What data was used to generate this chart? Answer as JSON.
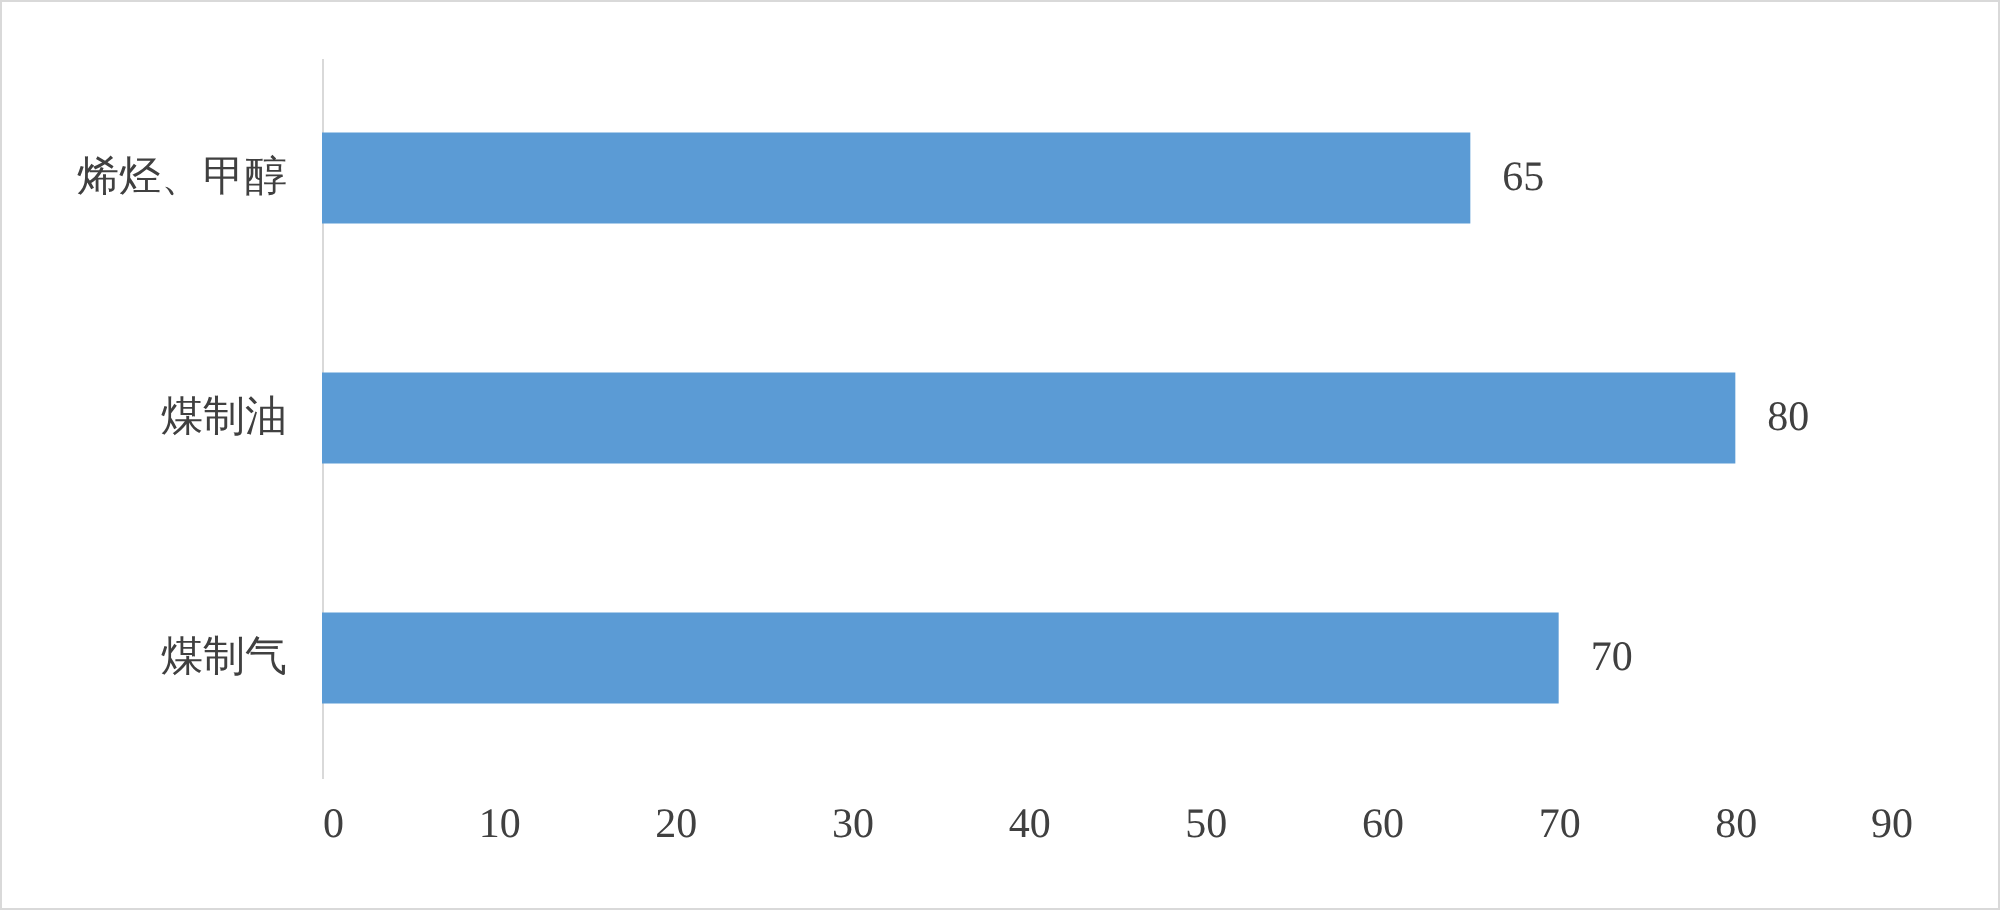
{
  "chart_data": {
    "type": "bar",
    "orientation": "horizontal",
    "categories": [
      "烯烃、甲醇",
      "煤制油",
      "煤制气"
    ],
    "values": [
      65,
      80,
      70
    ],
    "color": "#5b9bd5",
    "xlim": [
      0,
      90
    ],
    "xticks": [
      0,
      10,
      20,
      30,
      40,
      50,
      60,
      70,
      80,
      90
    ],
    "data_labels": true
  }
}
